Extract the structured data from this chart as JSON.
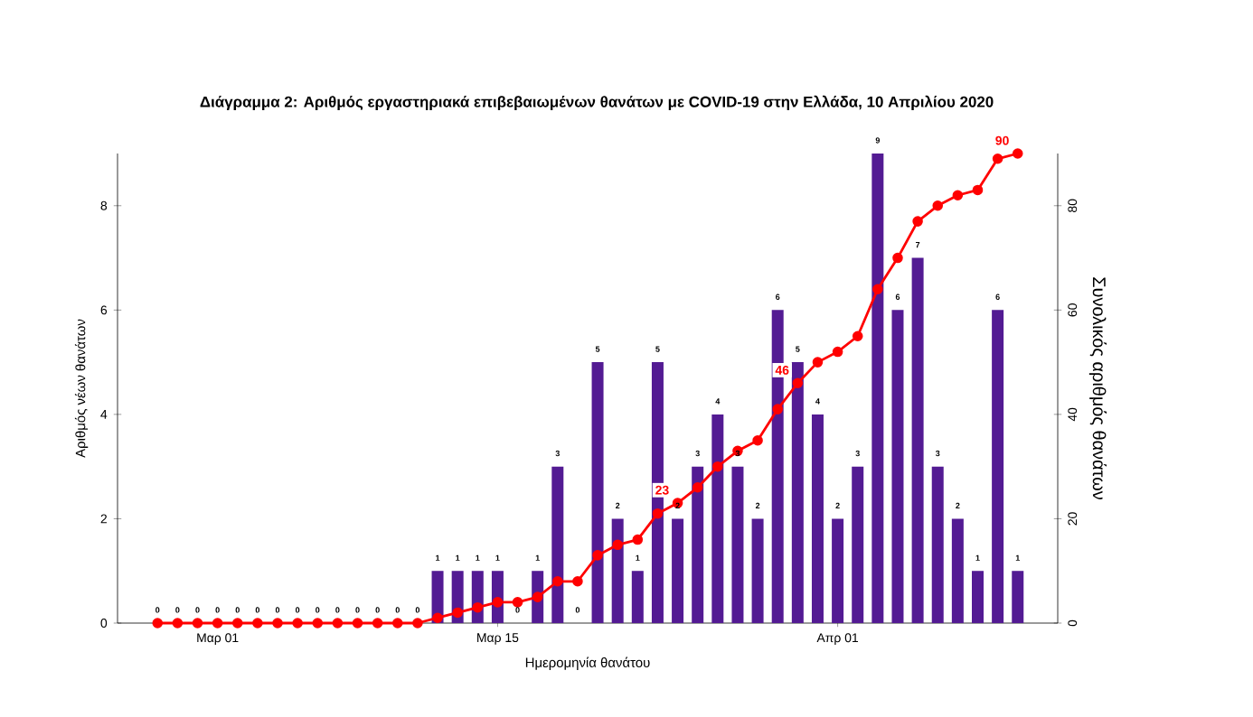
{
  "chart_data": {
    "type": "bar",
    "title": "Διάγραμμα 2: Αριθμός εργαστηριακά επιβεβαιωμένων θανάτων με COVID-19 στην Ελλάδα, 10 Απριλίου 2020",
    "xlabel": "Ημερομηνία θανάτου",
    "ylabel": "Αριθμός νέων θανάτων",
    "y2label": "Συνολικός αριθμός θανάτων",
    "x": [
      "2020-02-27",
      "2020-02-28",
      "2020-02-29",
      "2020-03-01",
      "2020-03-02",
      "2020-03-03",
      "2020-03-04",
      "2020-03-05",
      "2020-03-06",
      "2020-03-07",
      "2020-03-08",
      "2020-03-09",
      "2020-03-10",
      "2020-03-11",
      "2020-03-12",
      "2020-03-13",
      "2020-03-14",
      "2020-03-15",
      "2020-03-16",
      "2020-03-17",
      "2020-03-18",
      "2020-03-19",
      "2020-03-20",
      "2020-03-21",
      "2020-03-22",
      "2020-03-23",
      "2020-03-24",
      "2020-03-25",
      "2020-03-26",
      "2020-03-27",
      "2020-03-28",
      "2020-03-29",
      "2020-03-30",
      "2020-03-31",
      "2020-04-01",
      "2020-04-02",
      "2020-04-03",
      "2020-04-04",
      "2020-04-05",
      "2020-04-06",
      "2020-04-07",
      "2020-04-08",
      "2020-04-09",
      "2020-04-10"
    ],
    "series": [
      {
        "color": "#531b93",
        "values": [
          0,
          0,
          0,
          0,
          0,
          0,
          0,
          0,
          0,
          0,
          0,
          0,
          0,
          0,
          1,
          1,
          1,
          1,
          0,
          1,
          3,
          0,
          5,
          2,
          1,
          5,
          2,
          3,
          4,
          3,
          2,
          6,
          5,
          4,
          2,
          3,
          9,
          6,
          7,
          3,
          2,
          1,
          6,
          1
        ],
        "value_labels": [
          "0",
          "0",
          "0",
          "0",
          "0",
          "0",
          "0",
          "0",
          "0",
          "0",
          "0",
          "0",
          "0",
          "0",
          "1",
          "1",
          "1",
          "1",
          "0",
          "1",
          "3",
          "0",
          "5",
          "2",
          "1",
          "5",
          "2",
          "3",
          "4",
          "3",
          "2",
          "6",
          "5",
          "4",
          "2",
          "3",
          "9",
          "6",
          "7",
          "3",
          "2",
          "1",
          "6",
          "1"
        ]
      },
      {
        "type": "line",
        "axis": "y2",
        "color": "#ff0000",
        "marker": "circle",
        "values": [
          0,
          0,
          0,
          0,
          0,
          0,
          0,
          0,
          0,
          0,
          0,
          0,
          0,
          0,
          1,
          2,
          3,
          4,
          4,
          5,
          8,
          8,
          13,
          15,
          16,
          21,
          23,
          26,
          30,
          33,
          35,
          41,
          46,
          50,
          52,
          55,
          64,
          70,
          77,
          80,
          82,
          83,
          89,
          90
        ],
        "value_labels": [
          null,
          null,
          null,
          null,
          null,
          null,
          null,
          null,
          null,
          null,
          null,
          null,
          null,
          null,
          null,
          null,
          null,
          null,
          null,
          null,
          null,
          null,
          null,
          null,
          null,
          null,
          "23",
          null,
          null,
          null,
          null,
          null,
          "46",
          null,
          null,
          null,
          null,
          null,
          null,
          null,
          null,
          null,
          null,
          "90"
        ]
      }
    ],
    "xlim": [
      "2020-02-25",
      "2020-04-12"
    ],
    "xticks": [
      {
        "value": "2020-03-01",
        "label": "Μαρ 01"
      },
      {
        "value": "2020-03-15",
        "label": "Μαρ 15"
      },
      {
        "value": "2020-04-01",
        "label": "Απρ 01"
      }
    ],
    "ylim": [
      0,
      9
    ],
    "yticks": [
      0,
      2,
      4,
      6,
      8
    ],
    "y2lim": [
      0,
      90
    ],
    "y2ticks": [
      0,
      20,
      40,
      60,
      80
    ],
    "grid": false
  }
}
